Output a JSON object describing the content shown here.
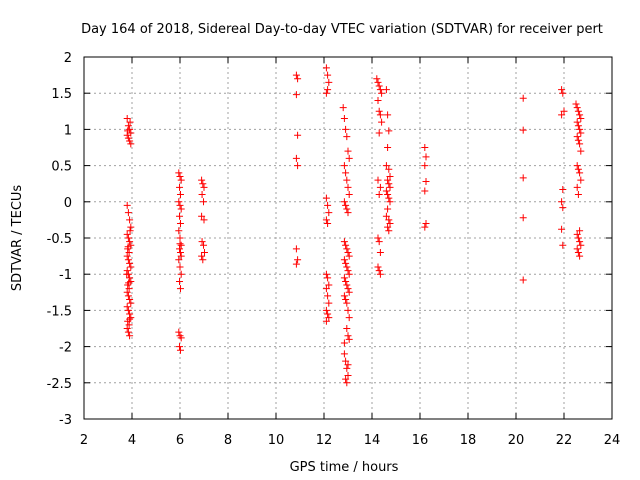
{
  "chart_data": {
    "type": "scatter",
    "title": "Day 164 of 2018, Sidereal Day-to-day VTEC variation (SDTVAR) for receiver pert",
    "xlabel": "GPS time / hours",
    "ylabel": "SDTVAR / TECUs",
    "xlim": [
      2,
      24
    ],
    "ylim": [
      -3,
      2
    ],
    "xticks": [
      2,
      4,
      6,
      8,
      10,
      12,
      14,
      16,
      18,
      20,
      22,
      24
    ],
    "yticks": [
      -3,
      -2.5,
      -2,
      -1.5,
      -1,
      -0.5,
      0,
      0.5,
      1,
      1.5,
      2
    ],
    "xtick_labels": [
      "2",
      "4",
      "6",
      "8",
      "10",
      "12",
      "14",
      "16",
      "18",
      "20",
      "22",
      "24"
    ],
    "ytick_labels": [
      "-3",
      "-2.5",
      "-2",
      "-1.5",
      "-1",
      "-0.5",
      "0",
      "0.5",
      "1",
      "1.5",
      "2"
    ],
    "grid": true,
    "marker": "+",
    "marker_color": "#ff0000",
    "series": [
      {
        "name": "SDTVAR",
        "points": [
          [
            3.8,
            1.15
          ],
          [
            3.85,
            1.05
          ],
          [
            3.9,
            1.0
          ],
          [
            3.95,
            0.95
          ],
          [
            3.8,
            0.92
          ],
          [
            3.85,
            0.88
          ],
          [
            3.9,
            0.84
          ],
          [
            3.95,
            0.8
          ],
          [
            3.82,
            0.98
          ],
          [
            3.92,
            1.1
          ],
          [
            3.8,
            -0.05
          ],
          [
            3.85,
            -0.15
          ],
          [
            3.9,
            -0.25
          ],
          [
            3.95,
            -0.35
          ],
          [
            3.8,
            -0.45
          ],
          [
            3.85,
            -0.5
          ],
          [
            3.9,
            -0.55
          ],
          [
            3.95,
            -0.6
          ],
          [
            3.82,
            -0.65
          ],
          [
            3.88,
            -0.7
          ],
          [
            3.8,
            -0.75
          ],
          [
            3.85,
            -0.8
          ],
          [
            3.9,
            -0.85
          ],
          [
            3.95,
            -0.9
          ],
          [
            3.8,
            -0.95
          ],
          [
            3.85,
            -1.0
          ],
          [
            3.9,
            -1.05
          ],
          [
            3.95,
            -1.1
          ],
          [
            3.82,
            -1.15
          ],
          [
            3.88,
            -1.2
          ],
          [
            3.8,
            -1.25
          ],
          [
            3.85,
            -1.3
          ],
          [
            3.9,
            -1.35
          ],
          [
            3.95,
            -1.4
          ],
          [
            3.8,
            -1.45
          ],
          [
            3.85,
            -1.5
          ],
          [
            3.9,
            -1.55
          ],
          [
            3.95,
            -1.6
          ],
          [
            3.82,
            -1.65
          ],
          [
            3.88,
            -1.7
          ],
          [
            3.8,
            -1.75
          ],
          [
            3.85,
            -1.8
          ],
          [
            3.9,
            -1.85
          ],
          [
            3.78,
            -1.0
          ],
          [
            3.92,
            -0.4
          ],
          [
            3.86,
            -1.12
          ],
          [
            3.84,
            -0.62
          ],
          [
            3.9,
            -1.62
          ],
          [
            5.95,
            0.4
          ],
          [
            6.0,
            0.35
          ],
          [
            6.05,
            0.3
          ],
          [
            5.98,
            0.2
          ],
          [
            6.02,
            0.1
          ],
          [
            5.95,
            0.0
          ],
          [
            6.0,
            -0.05
          ],
          [
            6.05,
            -0.1
          ],
          [
            5.98,
            -0.2
          ],
          [
            6.02,
            -0.3
          ],
          [
            5.95,
            -0.4
          ],
          [
            6.0,
            -0.5
          ],
          [
            6.05,
            -0.6
          ],
          [
            5.98,
            -0.65
          ],
          [
            6.02,
            -0.7
          ],
          [
            5.95,
            -0.8
          ],
          [
            6.0,
            -0.9
          ],
          [
            6.05,
            -1.0
          ],
          [
            5.98,
            -1.1
          ],
          [
            6.02,
            -1.2
          ],
          [
            5.95,
            -1.8
          ],
          [
            6.0,
            -1.85
          ],
          [
            6.05,
            -1.88
          ],
          [
            5.98,
            -2.0
          ],
          [
            6.02,
            -2.05
          ],
          [
            6.0,
            -0.58
          ],
          [
            6.05,
            -0.75
          ],
          [
            6.9,
            0.3
          ],
          [
            6.95,
            0.25
          ],
          [
            7.0,
            0.2
          ],
          [
            6.92,
            0.1
          ],
          [
            6.98,
            0.0
          ],
          [
            6.9,
            -0.2
          ],
          [
            7.0,
            -0.25
          ],
          [
            6.92,
            -0.55
          ],
          [
            6.98,
            -0.6
          ],
          [
            6.9,
            -0.75
          ],
          [
            6.95,
            -0.8
          ],
          [
            7.02,
            -0.7
          ],
          [
            10.85,
            1.75
          ],
          [
            10.9,
            1.7
          ],
          [
            10.85,
            1.48
          ],
          [
            10.9,
            0.92
          ],
          [
            10.85,
            0.6
          ],
          [
            10.9,
            0.5
          ],
          [
            10.85,
            -0.65
          ],
          [
            10.9,
            -0.8
          ],
          [
            10.85,
            -0.86
          ],
          [
            12.1,
            1.85
          ],
          [
            12.15,
            1.75
          ],
          [
            12.2,
            1.65
          ],
          [
            12.1,
            1.5
          ],
          [
            12.15,
            1.55
          ],
          [
            12.1,
            0.05
          ],
          [
            12.15,
            -0.05
          ],
          [
            12.2,
            -0.15
          ],
          [
            12.1,
            -0.25
          ],
          [
            12.15,
            -0.3
          ],
          [
            12.1,
            -1.0
          ],
          [
            12.15,
            -1.05
          ],
          [
            12.2,
            -1.15
          ],
          [
            12.1,
            -1.2
          ],
          [
            12.15,
            -1.3
          ],
          [
            12.2,
            -1.4
          ],
          [
            12.1,
            -1.5
          ],
          [
            12.15,
            -1.55
          ],
          [
            12.2,
            -1.6
          ],
          [
            12.1,
            -1.65
          ],
          [
            12.8,
            1.3
          ],
          [
            12.85,
            1.15
          ],
          [
            12.9,
            1.0
          ],
          [
            12.95,
            0.9
          ],
          [
            13.0,
            0.7
          ],
          [
            13.05,
            0.6
          ],
          [
            12.85,
            0.5
          ],
          [
            12.9,
            0.4
          ],
          [
            12.95,
            0.3
          ],
          [
            13.0,
            0.2
          ],
          [
            13.05,
            0.1
          ],
          [
            12.85,
            0.0
          ],
          [
            12.9,
            -0.05
          ],
          [
            12.95,
            -0.1
          ],
          [
            13.0,
            -0.15
          ],
          [
            12.85,
            -0.55
          ],
          [
            12.9,
            -0.6
          ],
          [
            12.95,
            -0.65
          ],
          [
            13.0,
            -0.7
          ],
          [
            13.05,
            -0.75
          ],
          [
            12.85,
            -0.8
          ],
          [
            12.9,
            -0.85
          ],
          [
            12.95,
            -0.9
          ],
          [
            13.0,
            -0.95
          ],
          [
            13.05,
            -1.0
          ],
          [
            12.85,
            -1.05
          ],
          [
            12.9,
            -1.1
          ],
          [
            12.95,
            -1.15
          ],
          [
            13.0,
            -1.2
          ],
          [
            13.05,
            -1.25
          ],
          [
            12.85,
            -1.3
          ],
          [
            12.9,
            -1.35
          ],
          [
            12.95,
            -1.4
          ],
          [
            13.0,
            -1.5
          ],
          [
            13.05,
            -1.6
          ],
          [
            12.95,
            -1.75
          ],
          [
            13.0,
            -1.85
          ],
          [
            13.05,
            -1.9
          ],
          [
            12.85,
            -2.1
          ],
          [
            12.9,
            -2.2
          ],
          [
            12.95,
            -2.3
          ],
          [
            13.0,
            -2.4
          ],
          [
            12.9,
            -2.45
          ],
          [
            12.95,
            -2.5
          ],
          [
            12.85,
            -1.95
          ],
          [
            13.0,
            -2.25
          ],
          [
            14.2,
            1.7
          ],
          [
            14.25,
            1.65
          ],
          [
            14.3,
            1.6
          ],
          [
            14.35,
            1.55
          ],
          [
            14.4,
            1.5
          ],
          [
            14.25,
            1.4
          ],
          [
            14.3,
            1.25
          ],
          [
            14.35,
            1.2
          ],
          [
            14.4,
            1.1
          ],
          [
            14.3,
            0.95
          ],
          [
            14.25,
            0.3
          ],
          [
            14.35,
            0.2
          ],
          [
            14.3,
            0.1
          ],
          [
            14.25,
            -0.5
          ],
          [
            14.3,
            -0.55
          ],
          [
            14.35,
            -0.7
          ],
          [
            14.25,
            -0.9
          ],
          [
            14.3,
            -0.95
          ],
          [
            14.35,
            -1.0
          ],
          [
            14.6,
            1.55
          ],
          [
            14.65,
            1.2
          ],
          [
            14.7,
            0.98
          ],
          [
            14.65,
            0.75
          ],
          [
            14.6,
            0.5
          ],
          [
            14.7,
            0.45
          ],
          [
            14.75,
            0.35
          ],
          [
            14.65,
            0.3
          ],
          [
            14.7,
            0.25
          ],
          [
            14.75,
            0.2
          ],
          [
            14.6,
            0.15
          ],
          [
            14.65,
            0.1
          ],
          [
            14.7,
            0.05
          ],
          [
            14.75,
            0.0
          ],
          [
            14.65,
            -0.1
          ],
          [
            14.6,
            -0.2
          ],
          [
            14.7,
            -0.25
          ],
          [
            14.75,
            -0.3
          ],
          [
            14.65,
            -0.35
          ],
          [
            14.7,
            -0.4
          ],
          [
            16.2,
            0.75
          ],
          [
            16.25,
            0.62
          ],
          [
            16.2,
            0.5
          ],
          [
            16.25,
            0.28
          ],
          [
            16.2,
            0.15
          ],
          [
            16.25,
            -0.3
          ],
          [
            16.2,
            -0.35
          ],
          [
            20.3,
            1.43
          ],
          [
            20.3,
            0.99
          ],
          [
            20.3,
            0.33
          ],
          [
            20.3,
            -0.22
          ],
          [
            20.3,
            -1.08
          ],
          [
            21.9,
            1.55
          ],
          [
            21.95,
            1.5
          ],
          [
            22.0,
            1.25
          ],
          [
            21.9,
            1.2
          ],
          [
            21.95,
            0.17
          ],
          [
            21.9,
            0.0
          ],
          [
            21.95,
            -0.08
          ],
          [
            21.9,
            -0.38
          ],
          [
            21.95,
            -0.6
          ],
          [
            22.5,
            1.35
          ],
          [
            22.55,
            1.3
          ],
          [
            22.6,
            1.25
          ],
          [
            22.65,
            1.2
          ],
          [
            22.7,
            1.15
          ],
          [
            22.55,
            1.1
          ],
          [
            22.6,
            1.05
          ],
          [
            22.65,
            1.0
          ],
          [
            22.7,
            0.95
          ],
          [
            22.55,
            0.9
          ],
          [
            22.6,
            0.85
          ],
          [
            22.65,
            0.8
          ],
          [
            22.7,
            0.7
          ],
          [
            22.55,
            0.5
          ],
          [
            22.6,
            0.45
          ],
          [
            22.65,
            0.4
          ],
          [
            22.7,
            0.3
          ],
          [
            22.55,
            0.2
          ],
          [
            22.6,
            0.1
          ],
          [
            22.65,
            -0.4
          ],
          [
            22.55,
            -0.45
          ],
          [
            22.6,
            -0.5
          ],
          [
            22.65,
            -0.55
          ],
          [
            22.7,
            -0.6
          ],
          [
            22.55,
            -0.65
          ],
          [
            22.6,
            -0.7
          ],
          [
            22.65,
            -0.75
          ]
        ]
      }
    ]
  }
}
